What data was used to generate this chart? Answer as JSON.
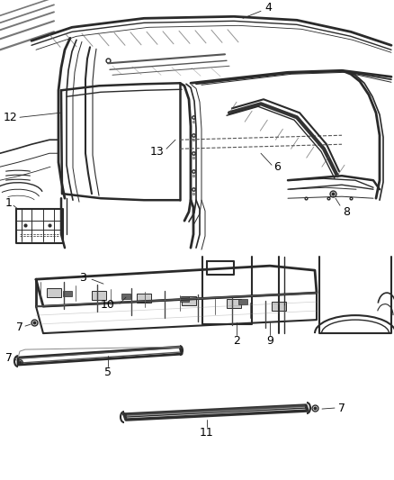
{
  "background_color": "#ffffff",
  "line_color": "#2a2a2a",
  "text_color": "#000000",
  "fig_width": 4.38,
  "fig_height": 5.33,
  "dpi": 100
}
